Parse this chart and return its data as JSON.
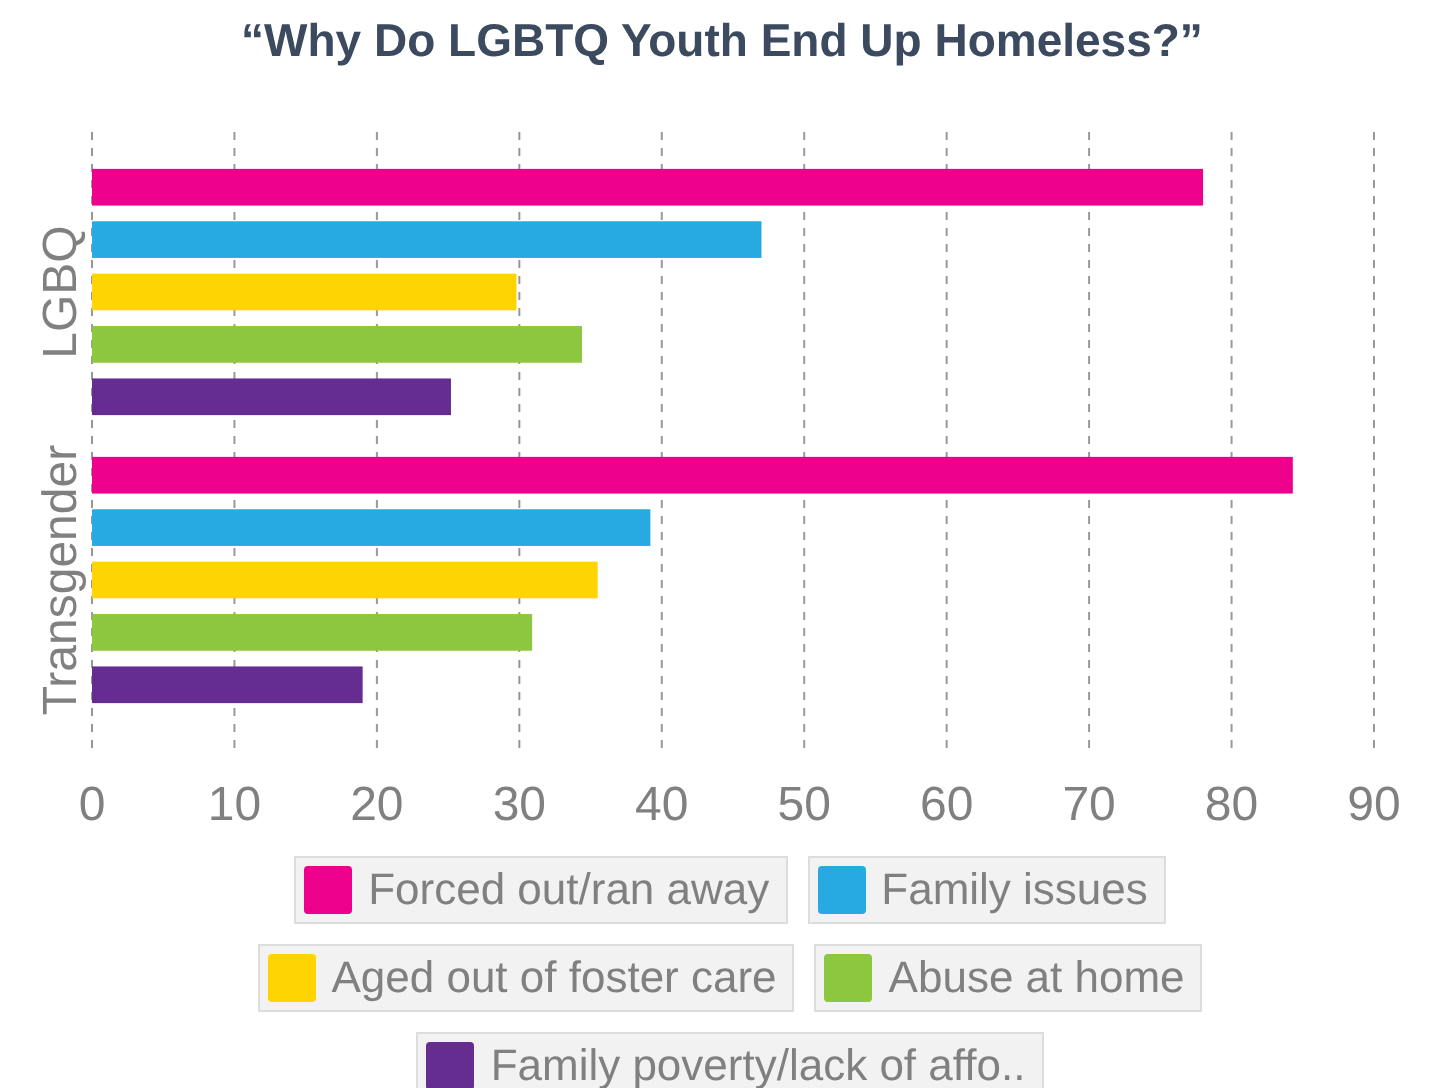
{
  "chart_data": {
    "type": "bar",
    "orientation": "horizontal",
    "title": "“Why Do LGBTQ Youth End Up Homeless?”",
    "categories": [
      "LGBQ",
      "Transgender"
    ],
    "series": [
      {
        "name": "Forced out/ran away",
        "color": "#ec008c",
        "values": [
          78.0,
          84.3
        ]
      },
      {
        "name": "Family issues",
        "color": "#27aae1",
        "values": [
          47.0,
          39.2
        ]
      },
      {
        "name": "Aged out of foster care",
        "color": "#ffd400",
        "values": [
          29.8,
          35.5
        ]
      },
      {
        "name": "Abuse at home",
        "color": "#8dc63f",
        "values": [
          34.4,
          30.9
        ]
      },
      {
        "name": "Family poverty/lack of affo..",
        "color": "#662d91",
        "values": [
          25.2,
          19.0
        ]
      }
    ],
    "xlim": [
      0,
      90
    ],
    "xticks": [
      0,
      10,
      20,
      30,
      40,
      50,
      60,
      70,
      80,
      90
    ],
    "grid": "x",
    "legend": "bottom"
  }
}
